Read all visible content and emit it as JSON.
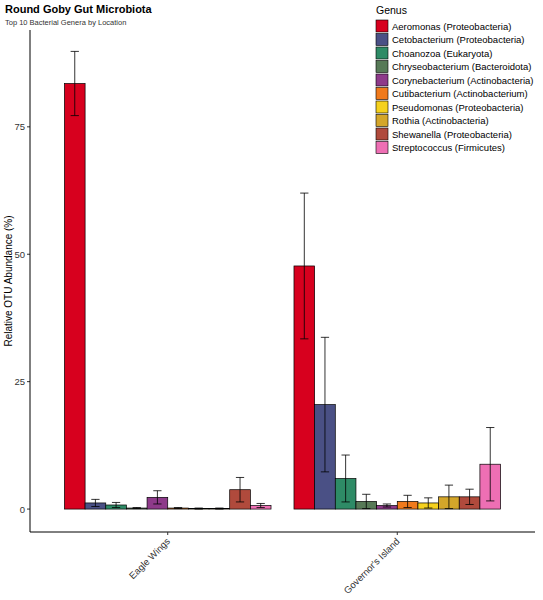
{
  "chart_data": {
    "type": "bar",
    "title": "Round Goby Gut Microbiota",
    "subtitle": "Top 10 Bacterial Genera by Location",
    "y_label": "Relative OTU Abundance (%)",
    "legend_title": "Genus",
    "legend": "top-right",
    "grid": false,
    "categories": [
      "Eagle Wings",
      "Governor's Island"
    ],
    "ylim": [
      -4.5,
      94
    ],
    "yticks": [
      0,
      25,
      50,
      75
    ],
    "series": [
      {
        "name": "Aeromonas (Proteobacteria)",
        "color": "#d7001e",
        "values": [
          83.5,
          47.7
        ],
        "errors": [
          6.3,
          14.3
        ]
      },
      {
        "name": "Cetobacterium (Proteobacteria)",
        "color": "#4a5085",
        "values": [
          1.2,
          20.5
        ],
        "errors": [
          0.7,
          13.2
        ]
      },
      {
        "name": "Choanozoa (Eukaryota)",
        "color": "#2e8b66",
        "values": [
          0.8,
          6.0
        ],
        "errors": [
          0.5,
          4.6
        ]
      },
      {
        "name": "Chryseobacterium (Bacteroidota)",
        "color": "#577a57",
        "values": [
          0.2,
          1.5
        ],
        "errors": [
          0.1,
          1.4
        ]
      },
      {
        "name": "Corynebacterium (Actinobacteria)",
        "color": "#8e3a8a",
        "values": [
          2.3,
          0.7
        ],
        "errors": [
          1.3,
          0.3
        ]
      },
      {
        "name": "Cutibacterium (Actinobacterium)",
        "color": "#f07a1c",
        "values": [
          0.2,
          1.5
        ],
        "errors": [
          0.1,
          1.2
        ]
      },
      {
        "name": "Pseudomonas (Proteobacteria)",
        "color": "#f5d11e",
        "values": [
          0.1,
          1.2
        ],
        "errors": [
          0.1,
          1.0
        ]
      },
      {
        "name": "Rothia (Actinobacteria)",
        "color": "#d4a62a",
        "values": [
          0.1,
          2.4
        ],
        "errors": [
          0.1,
          2.3
        ]
      },
      {
        "name": "Shewanella (Proteobacteria)",
        "color": "#b04a3c",
        "values": [
          3.8,
          2.4
        ],
        "errors": [
          2.4,
          1.5
        ]
      },
      {
        "name": "Streptococcus (Firmicutes)",
        "color": "#ee6fb4",
        "values": [
          0.7,
          8.8
        ],
        "errors": [
          0.4,
          7.2
        ]
      }
    ]
  }
}
